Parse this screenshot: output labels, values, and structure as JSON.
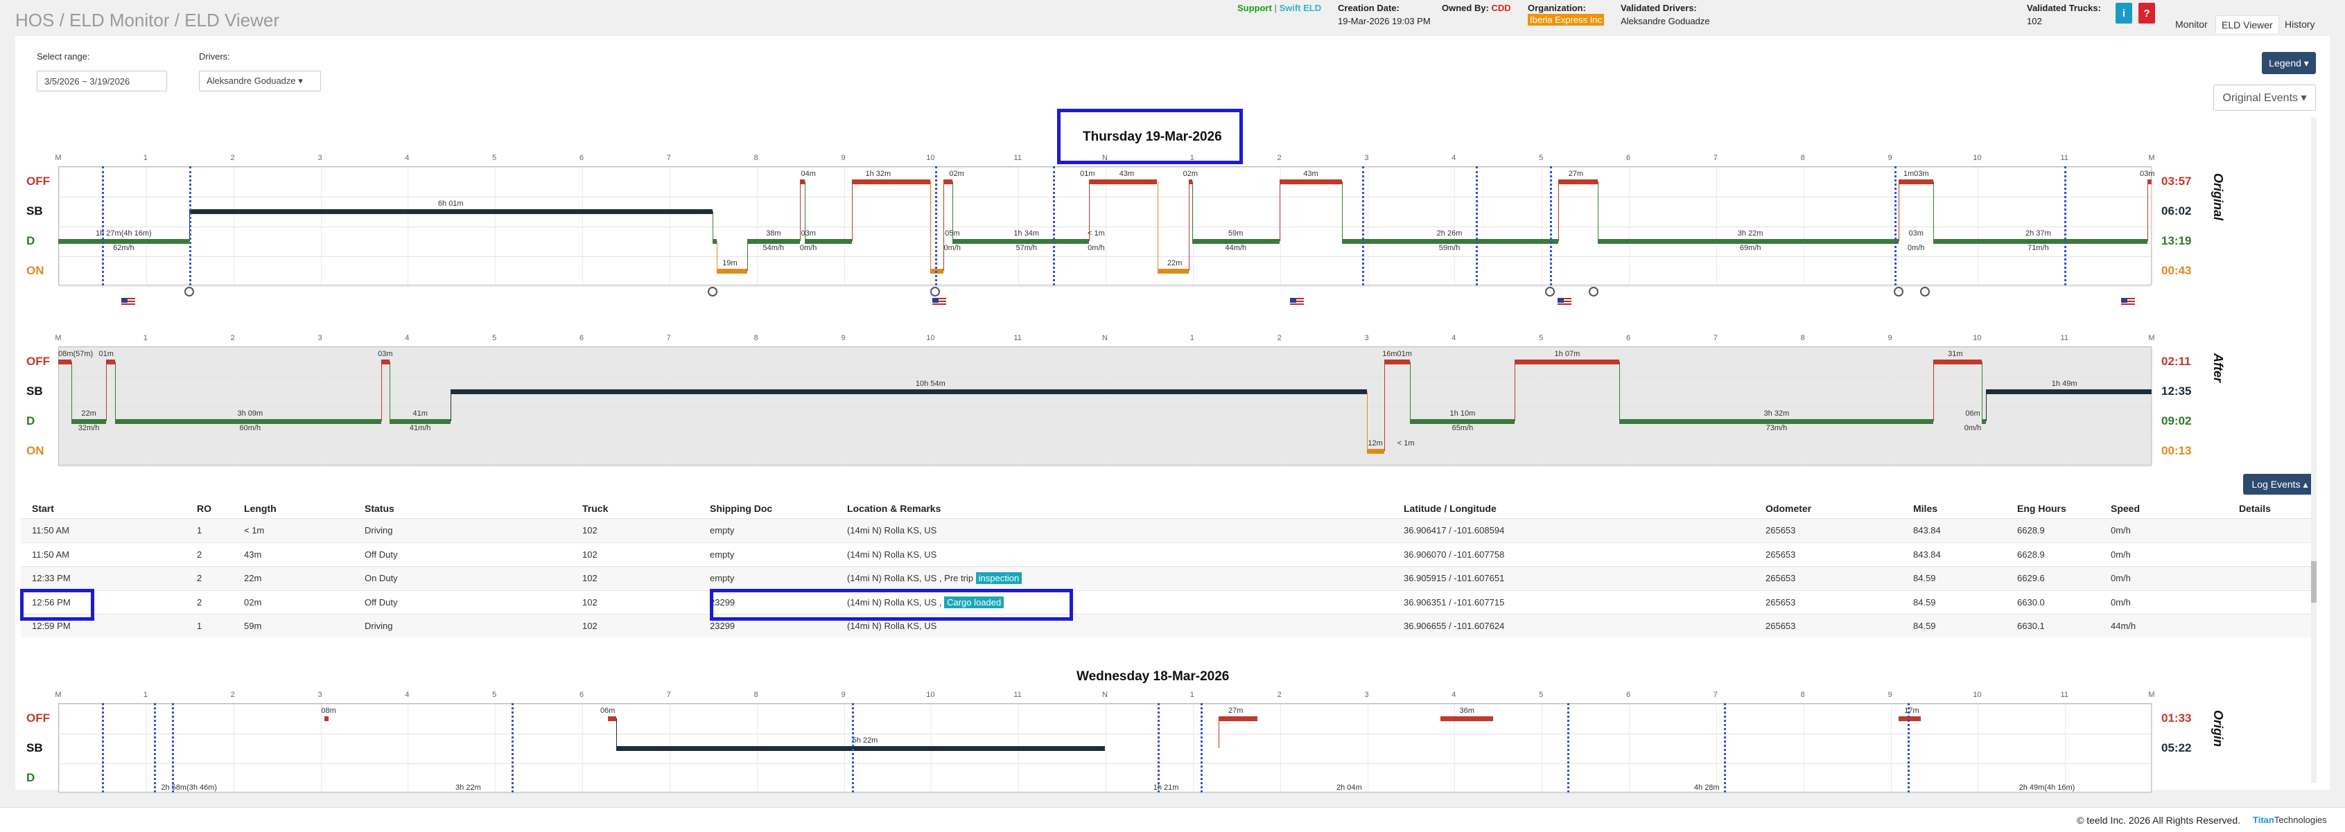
{
  "breadcrumb": "HOS / ELD Monitor / ELD Viewer",
  "header": {
    "support": "Support",
    "sep": " | ",
    "swift": "Swift ELD",
    "creation_label": "Creation Date:",
    "creation_value": "19-Mar-2026 19:03 PM",
    "owned_label": "Owned By:",
    "owned_value": "CDD",
    "org_label": "Organization:",
    "org_value": "Iberia Express Inc",
    "drivers_label": "Validated Drivers:",
    "drivers_value": "Aleksandre Goduadze",
    "trucks_label": "Validated Trucks:",
    "trucks_value": "102",
    "info_icon": "i",
    "alert_icon": "?"
  },
  "nav_tabs": [
    "Monitor",
    "ELD Viewer",
    "History"
  ],
  "controls": {
    "range_label": "Select range:",
    "range_value": "3/5/2026 ~ 3/19/2026",
    "drivers_label": "Drivers:",
    "driver_value": "Aleksandre Goduadze ▾",
    "legend_btn": "Legend ▾",
    "original_events": "Original Events ▾"
  },
  "colors": {
    "off": "#c0392b",
    "sb": "#1f2d3a",
    "d": "#3a7a3a",
    "on": "#e08a1a"
  },
  "day1": {
    "title": "Thursday 19-Mar-2026",
    "hours": [
      "M",
      "1",
      "2",
      "3",
      "4",
      "5",
      "6",
      "7",
      "8",
      "9",
      "10",
      "11",
      "N",
      "1",
      "2",
      "3",
      "4",
      "5",
      "6",
      "7",
      "8",
      "9",
      "10",
      "11",
      "M"
    ],
    "original": {
      "rows": [
        "OFF",
        "SB",
        "D",
        "ON"
      ],
      "totals": [
        "03:57",
        "06:02",
        "13:19",
        "00:43"
      ],
      "side": "Original",
      "segments": [
        {
          "s": 0,
          "e": 1.5,
          "r": 2
        },
        {
          "s": 1.5,
          "e": 7.5,
          "r": 1
        },
        {
          "s": 7.5,
          "e": 7.55,
          "r": 2
        },
        {
          "s": 7.55,
          "e": 7.9,
          "r": 3
        },
        {
          "s": 7.9,
          "e": 8.5,
          "r": 2
        },
        {
          "s": 8.5,
          "e": 8.56,
          "r": 0
        },
        {
          "s": 8.56,
          "e": 9.1,
          "r": 2
        },
        {
          "s": 9.1,
          "e": 10.0,
          "r": 0
        },
        {
          "s": 10.0,
          "e": 10.15,
          "r": 3
        },
        {
          "s": 10.15,
          "e": 10.25,
          "r": 0
        },
        {
          "s": 10.25,
          "e": 11.8,
          "r": 2
        },
        {
          "s": 11.8,
          "e": 11.82,
          "r": 2
        },
        {
          "s": 11.82,
          "e": 12.55,
          "r": 0
        },
        {
          "s": 12.55,
          "e": 12.6,
          "r": 0
        },
        {
          "s": 12.6,
          "e": 12.96,
          "r": 3
        },
        {
          "s": 12.96,
          "e": 13.0,
          "r": 0
        },
        {
          "s": 13.0,
          "e": 14.0,
          "r": 2
        },
        {
          "s": 14.0,
          "e": 14.72,
          "r": 0
        },
        {
          "s": 14.72,
          "e": 17.2,
          "r": 2
        },
        {
          "s": 17.2,
          "e": 17.65,
          "r": 0
        },
        {
          "s": 17.65,
          "e": 21.1,
          "r": 2
        },
        {
          "s": 21.1,
          "e": 21.5,
          "r": 0
        },
        {
          "s": 21.5,
          "e": 23.95,
          "r": 2
        },
        {
          "s": 23.95,
          "e": 24,
          "r": 0
        }
      ],
      "labels": [
        {
          "h": 0.75,
          "r": 2,
          "t": "1h 27m(4h 16m)"
        },
        {
          "h": 0.75,
          "r": 2.5,
          "t": "62m/h"
        },
        {
          "h": 4.5,
          "r": 1,
          "t": "6h 01m"
        },
        {
          "h": 7.7,
          "r": 3,
          "t": "19m"
        },
        {
          "h": 8.2,
          "r": 2,
          "t": "38m"
        },
        {
          "h": 8.2,
          "r": 2.5,
          "t": "54m/h"
        },
        {
          "h": 8.6,
          "r": 2,
          "t": "03m"
        },
        {
          "h": 8.6,
          "r": 2.5,
          "t": "0m/h"
        },
        {
          "h": 8.6,
          "r": 0,
          "t": "04m"
        },
        {
          "h": 9.4,
          "r": 0,
          "t": "1h 32m"
        },
        {
          "h": 10.3,
          "r": 0,
          "t": "02m"
        },
        {
          "h": 10.25,
          "r": 2,
          "t": "05m"
        },
        {
          "h": 10.25,
          "r": 2.5,
          "t": "0m/h"
        },
        {
          "h": 11.1,
          "r": 2,
          "t": "1h 34m"
        },
        {
          "h": 11.1,
          "r": 2.5,
          "t": "57m/h"
        },
        {
          "h": 11.8,
          "r": 0,
          "t": "01m"
        },
        {
          "h": 12.25,
          "r": 0,
          "t": "43m"
        },
        {
          "h": 11.9,
          "r": 2,
          "t": "< 1m"
        },
        {
          "h": 11.9,
          "r": 2.5,
          "t": "0m/h"
        },
        {
          "h": 12.8,
          "r": 3,
          "t": "22m"
        },
        {
          "h": 12.98,
          "r": 0,
          "t": "02m"
        },
        {
          "h": 13.5,
          "r": 2,
          "t": "59m"
        },
        {
          "h": 13.5,
          "r": 2.5,
          "t": "44m/h"
        },
        {
          "h": 14.36,
          "r": 0,
          "t": "43m"
        },
        {
          "h": 15.95,
          "r": 2,
          "t": "2h 26m"
        },
        {
          "h": 15.95,
          "r": 2.5,
          "t": "59m/h"
        },
        {
          "h": 17.4,
          "r": 0,
          "t": "27m"
        },
        {
          "h": 19.4,
          "r": 2,
          "t": "3h 22m"
        },
        {
          "h": 19.4,
          "r": 2.5,
          "t": "69m/h"
        },
        {
          "h": 21.3,
          "r": 0,
          "t": "1m03m"
        },
        {
          "h": 21.3,
          "r": 2,
          "t": "03m"
        },
        {
          "h": 21.3,
          "r": 2.5,
          "t": "0m/h"
        },
        {
          "h": 22.7,
          "r": 2,
          "t": "2h 37m"
        },
        {
          "h": 22.7,
          "r": 2.5,
          "t": "71m/h"
        },
        {
          "h": 23.95,
          "r": 0,
          "t": "03m"
        }
      ],
      "dashes": [
        0.5,
        1.5,
        10.05,
        11.4,
        14.95,
        16.25,
        17.1,
        21.05,
        23.0
      ]
    },
    "after": {
      "rows": [
        "OFF",
        "SB",
        "D",
        "ON"
      ],
      "totals": [
        "02:11",
        "12:35",
        "09:02",
        "00:13"
      ],
      "side": "After",
      "segments": [
        {
          "s": 0,
          "e": 0.15,
          "r": 0
        },
        {
          "s": 0.15,
          "e": 0.55,
          "r": 2
        },
        {
          "s": 0.55,
          "e": 0.65,
          "r": 0
        },
        {
          "s": 0.65,
          "e": 3.7,
          "r": 2
        },
        {
          "s": 3.7,
          "e": 3.8,
          "r": 0
        },
        {
          "s": 3.8,
          "e": 4.5,
          "r": 2
        },
        {
          "s": 4.5,
          "e": 15.0,
          "r": 1
        },
        {
          "s": 15.0,
          "e": 15.2,
          "r": 3
        },
        {
          "s": 15.2,
          "e": 15.5,
          "r": 0
        },
        {
          "s": 15.5,
          "e": 16.7,
          "r": 2
        },
        {
          "s": 16.7,
          "e": 17.9,
          "r": 0
        },
        {
          "s": 17.9,
          "e": 21.5,
          "r": 2
        },
        {
          "s": 21.5,
          "e": 22.05,
          "r": 0
        },
        {
          "s": 22.05,
          "e": 22.1,
          "r": 2
        },
        {
          "s": 22.1,
          "e": 24,
          "r": 1
        }
      ],
      "labels": [
        {
          "h": 0.2,
          "r": 0,
          "t": "08m(57m)"
        },
        {
          "h": 0.55,
          "r": 0,
          "t": "01m"
        },
        {
          "h": 0.35,
          "r": 2,
          "t": "22m"
        },
        {
          "h": 0.35,
          "r": 2.5,
          "t": "32m/h"
        },
        {
          "h": 2.2,
          "r": 2,
          "t": "3h 09m"
        },
        {
          "h": 2.2,
          "r": 2.5,
          "t": "60m/h"
        },
        {
          "h": 3.75,
          "r": 0,
          "t": "03m"
        },
        {
          "h": 4.15,
          "r": 2,
          "t": "41m"
        },
        {
          "h": 4.15,
          "r": 2.5,
          "t": "41m/h"
        },
        {
          "h": 10.0,
          "r": 1,
          "t": "10h 54m"
        },
        {
          "h": 15.1,
          "r": 3,
          "t": "12m"
        },
        {
          "h": 15.35,
          "r": 0,
          "t": "16m01m"
        },
        {
          "h": 15.45,
          "r": 3,
          "t": "< 1m"
        },
        {
          "h": 16.1,
          "r": 2,
          "t": "1h 10m"
        },
        {
          "h": 16.1,
          "r": 2.5,
          "t": "65m/h"
        },
        {
          "h": 17.3,
          "r": 0,
          "t": "1h 07m"
        },
        {
          "h": 19.7,
          "r": 2,
          "t": "3h 32m"
        },
        {
          "h": 19.7,
          "r": 2.5,
          "t": "73m/h"
        },
        {
          "h": 21.75,
          "r": 0,
          "t": "31m"
        },
        {
          "h": 21.95,
          "r": 2,
          "t": "06m"
        },
        {
          "h": 21.95,
          "r": 2.5,
          "t": "0m/h"
        },
        {
          "h": 23.0,
          "r": 1,
          "t": "1h 49m"
        }
      ],
      "dashes": []
    }
  },
  "log_events": {
    "button": "Log Events ▴",
    "headers": [
      "Start",
      "RO",
      "Length",
      "Status",
      "Truck",
      "Shipping Doc",
      "Location & Remarks",
      "Latitude / Longitude",
      "Odometer",
      "Miles",
      "Eng Hours",
      "Speed",
      "Details"
    ],
    "rows": [
      {
        "start": "11:50 AM",
        "ro": "1",
        "length": "< 1m",
        "status": "Driving",
        "truck": "102",
        "doc": "empty",
        "loc": "(14mi N) Rolla KS, US",
        "note": "",
        "badge": "",
        "latlon": "36.906417 / -101.608594",
        "odo": "265653",
        "miles": "843.84",
        "eng": "6628.9",
        "speed": "0m/h"
      },
      {
        "start": "11:50 AM",
        "ro": "2",
        "length": "43m",
        "status": "Off Duty",
        "truck": "102",
        "doc": "empty",
        "loc": "(14mi N) Rolla KS, US",
        "note": "",
        "badge": "",
        "latlon": "36.906070 / -101.607758",
        "odo": "265653",
        "miles": "843.84",
        "eng": "6628.9",
        "speed": "0m/h"
      },
      {
        "start": "12:33 PM",
        "ro": "2",
        "length": "22m",
        "status": "On Duty",
        "truck": "102",
        "doc": "empty",
        "loc": "(14mi N) Rolla KS, US",
        "note": " , Pre trip ",
        "badge": "inspection",
        "latlon": "36.905915 / -101.607651",
        "odo": "265653",
        "miles": "84.59",
        "eng": "6629.6",
        "speed": "0m/h"
      },
      {
        "start": "12:56 PM",
        "ro": "2",
        "length": "02m",
        "status": "Off Duty",
        "truck": "102",
        "doc": "23299",
        "loc": "(14mi N) Rolla KS, US",
        "note": " , ",
        "badge": "Cargo loaded",
        "latlon": "36.906351 / -101.607715",
        "odo": "265653",
        "miles": "84.59",
        "eng": "6630.0",
        "speed": "0m/h"
      },
      {
        "start": "12:59 PM",
        "ro": "1",
        "length": "59m",
        "status": "Driving",
        "truck": "102",
        "doc": "23299",
        "loc": "(14mi N) Rolla KS, US",
        "note": "",
        "badge": "",
        "latlon": "36.906655 / -101.607624",
        "odo": "265653",
        "miles": "84.59",
        "eng": "6630.1",
        "speed": "44m/h"
      }
    ]
  },
  "day2": {
    "title": "Wednesday 18-Mar-2026",
    "totals": [
      "01:33",
      "05:22"
    ],
    "side": "Origin",
    "labels": [
      {
        "h": 3.1,
        "r": 0,
        "t": "08m"
      },
      {
        "h": 6.3,
        "r": 0,
        "t": "06m"
      },
      {
        "h": 9.25,
        "r": 1,
        "t": "5h 22m"
      },
      {
        "h": 13.5,
        "r": 0,
        "t": "27m"
      },
      {
        "h": 16.15,
        "r": 0,
        "t": "36m"
      },
      {
        "h": 21.25,
        "r": 0,
        "t": "17m"
      },
      {
        "h": 1.5,
        "r": 2.6,
        "t": "2h 58m(3h 46m)"
      },
      {
        "h": 4.7,
        "r": 2.6,
        "t": "3h 22m"
      },
      {
        "h": 12.7,
        "r": 2.6,
        "t": "1h 21m"
      },
      {
        "h": 14.8,
        "r": 2.6,
        "t": "2h 04m"
      },
      {
        "h": 18.9,
        "r": 2.6,
        "t": "4h 28m"
      },
      {
        "h": 22.8,
        "r": 2.6,
        "t": "2h 49m(4h 16m)"
      }
    ],
    "segments": [
      {
        "s": 3.05,
        "e": 3.1,
        "r": 0
      },
      {
        "s": 6.3,
        "e": 6.4,
        "r": 0
      },
      {
        "s": 6.4,
        "e": 12.0,
        "r": 1
      },
      {
        "s": 13.3,
        "e": 13.75,
        "r": 0
      },
      {
        "s": 15.85,
        "e": 16.45,
        "r": 0
      },
      {
        "s": 21.1,
        "e": 21.35,
        "r": 0
      }
    ]
  },
  "footer": {
    "copyright": "© teeld Inc. 2026 All Rights Reserved.",
    "titan": "Titan",
    "tech": "Technologies"
  }
}
